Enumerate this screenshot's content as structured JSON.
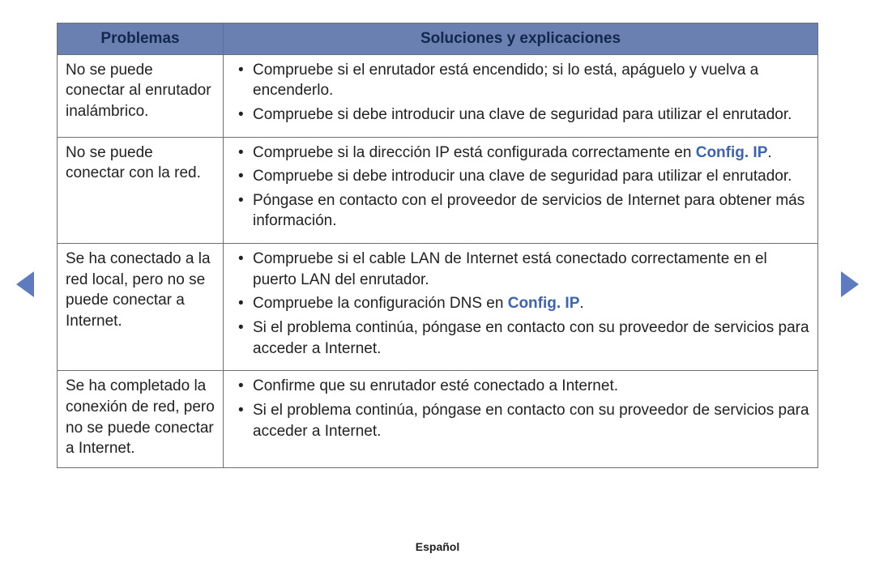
{
  "headers": {
    "problems": "Problemas",
    "solutions": "Soluciones y explicaciones"
  },
  "rows": [
    {
      "problem": "No se puede conectar al enrutador inalámbrico.",
      "solutions": [
        {
          "pre": "Compruebe si el enrutador está encendido; si lo está, apáguelo y vuelva a encenderlo."
        },
        {
          "pre": "Compruebe si debe introducir una clave de seguridad para utilizar el enrutador."
        }
      ]
    },
    {
      "problem": "No se puede conectar con la red.",
      "solutions": [
        {
          "pre": "Compruebe si la dirección IP está configurada correctamente en ",
          "link": "Config. IP",
          "post": "."
        },
        {
          "pre": "Compruebe si debe introducir una clave de seguridad para utilizar el enrutador."
        },
        {
          "pre": "Póngase en contacto con el proveedor de servicios de Internet para obtener más información."
        }
      ]
    },
    {
      "problem": "Se ha conectado a la red local, pero no se puede conectar a Internet.",
      "solutions": [
        {
          "pre": "Compruebe si el cable LAN de Internet está conectado correctamente en el puerto LAN del enrutador."
        },
        {
          "pre": "Compruebe la configuración DNS en ",
          "link": "Config. IP",
          "post": "."
        },
        {
          "pre": "Si el problema continúa, póngase en contacto con su proveedor de servicios para acceder a Internet."
        }
      ]
    },
    {
      "problem": "Se ha completado la conexión de red, pero no se puede conectar a Internet.",
      "solutions": [
        {
          "pre": "Confirme que su enrutador esté conectado a Internet."
        },
        {
          "pre": "Si el problema continúa, póngase en contacto con su proveedor de servicios para acceder a Internet."
        }
      ]
    }
  ],
  "footer": {
    "language": "Español"
  },
  "colors": {
    "header_bg": "#6a80b0",
    "header_text": "#13264e",
    "border": "#6e6e6e",
    "link": "#3d64b1",
    "arrow": "#5e7bbf",
    "body_text": "#222222",
    "background": "#ffffff"
  }
}
